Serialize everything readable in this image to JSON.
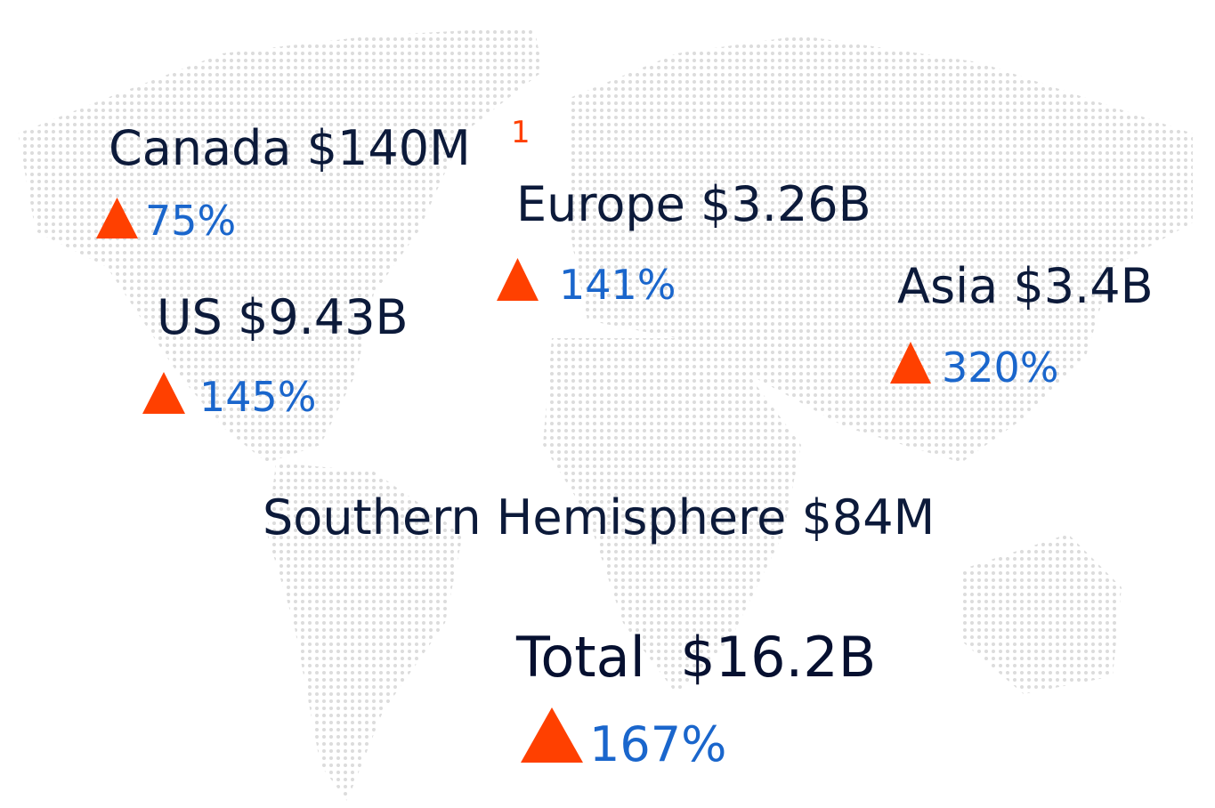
{
  "regions": [
    {
      "label": "Canada $140M",
      "footnote": "1",
      "change": "75%"
    },
    {
      "label": "Europe $3.26B",
      "change": "141%"
    },
    {
      "label": "US $9.43B",
      "change": "145%"
    },
    {
      "label": "Asia $3.4B",
      "change": "320%"
    },
    {
      "label": "Southern Hemisphere $84M"
    }
  ],
  "total": {
    "label": "Total  $16.2B",
    "change": "167%"
  }
}
